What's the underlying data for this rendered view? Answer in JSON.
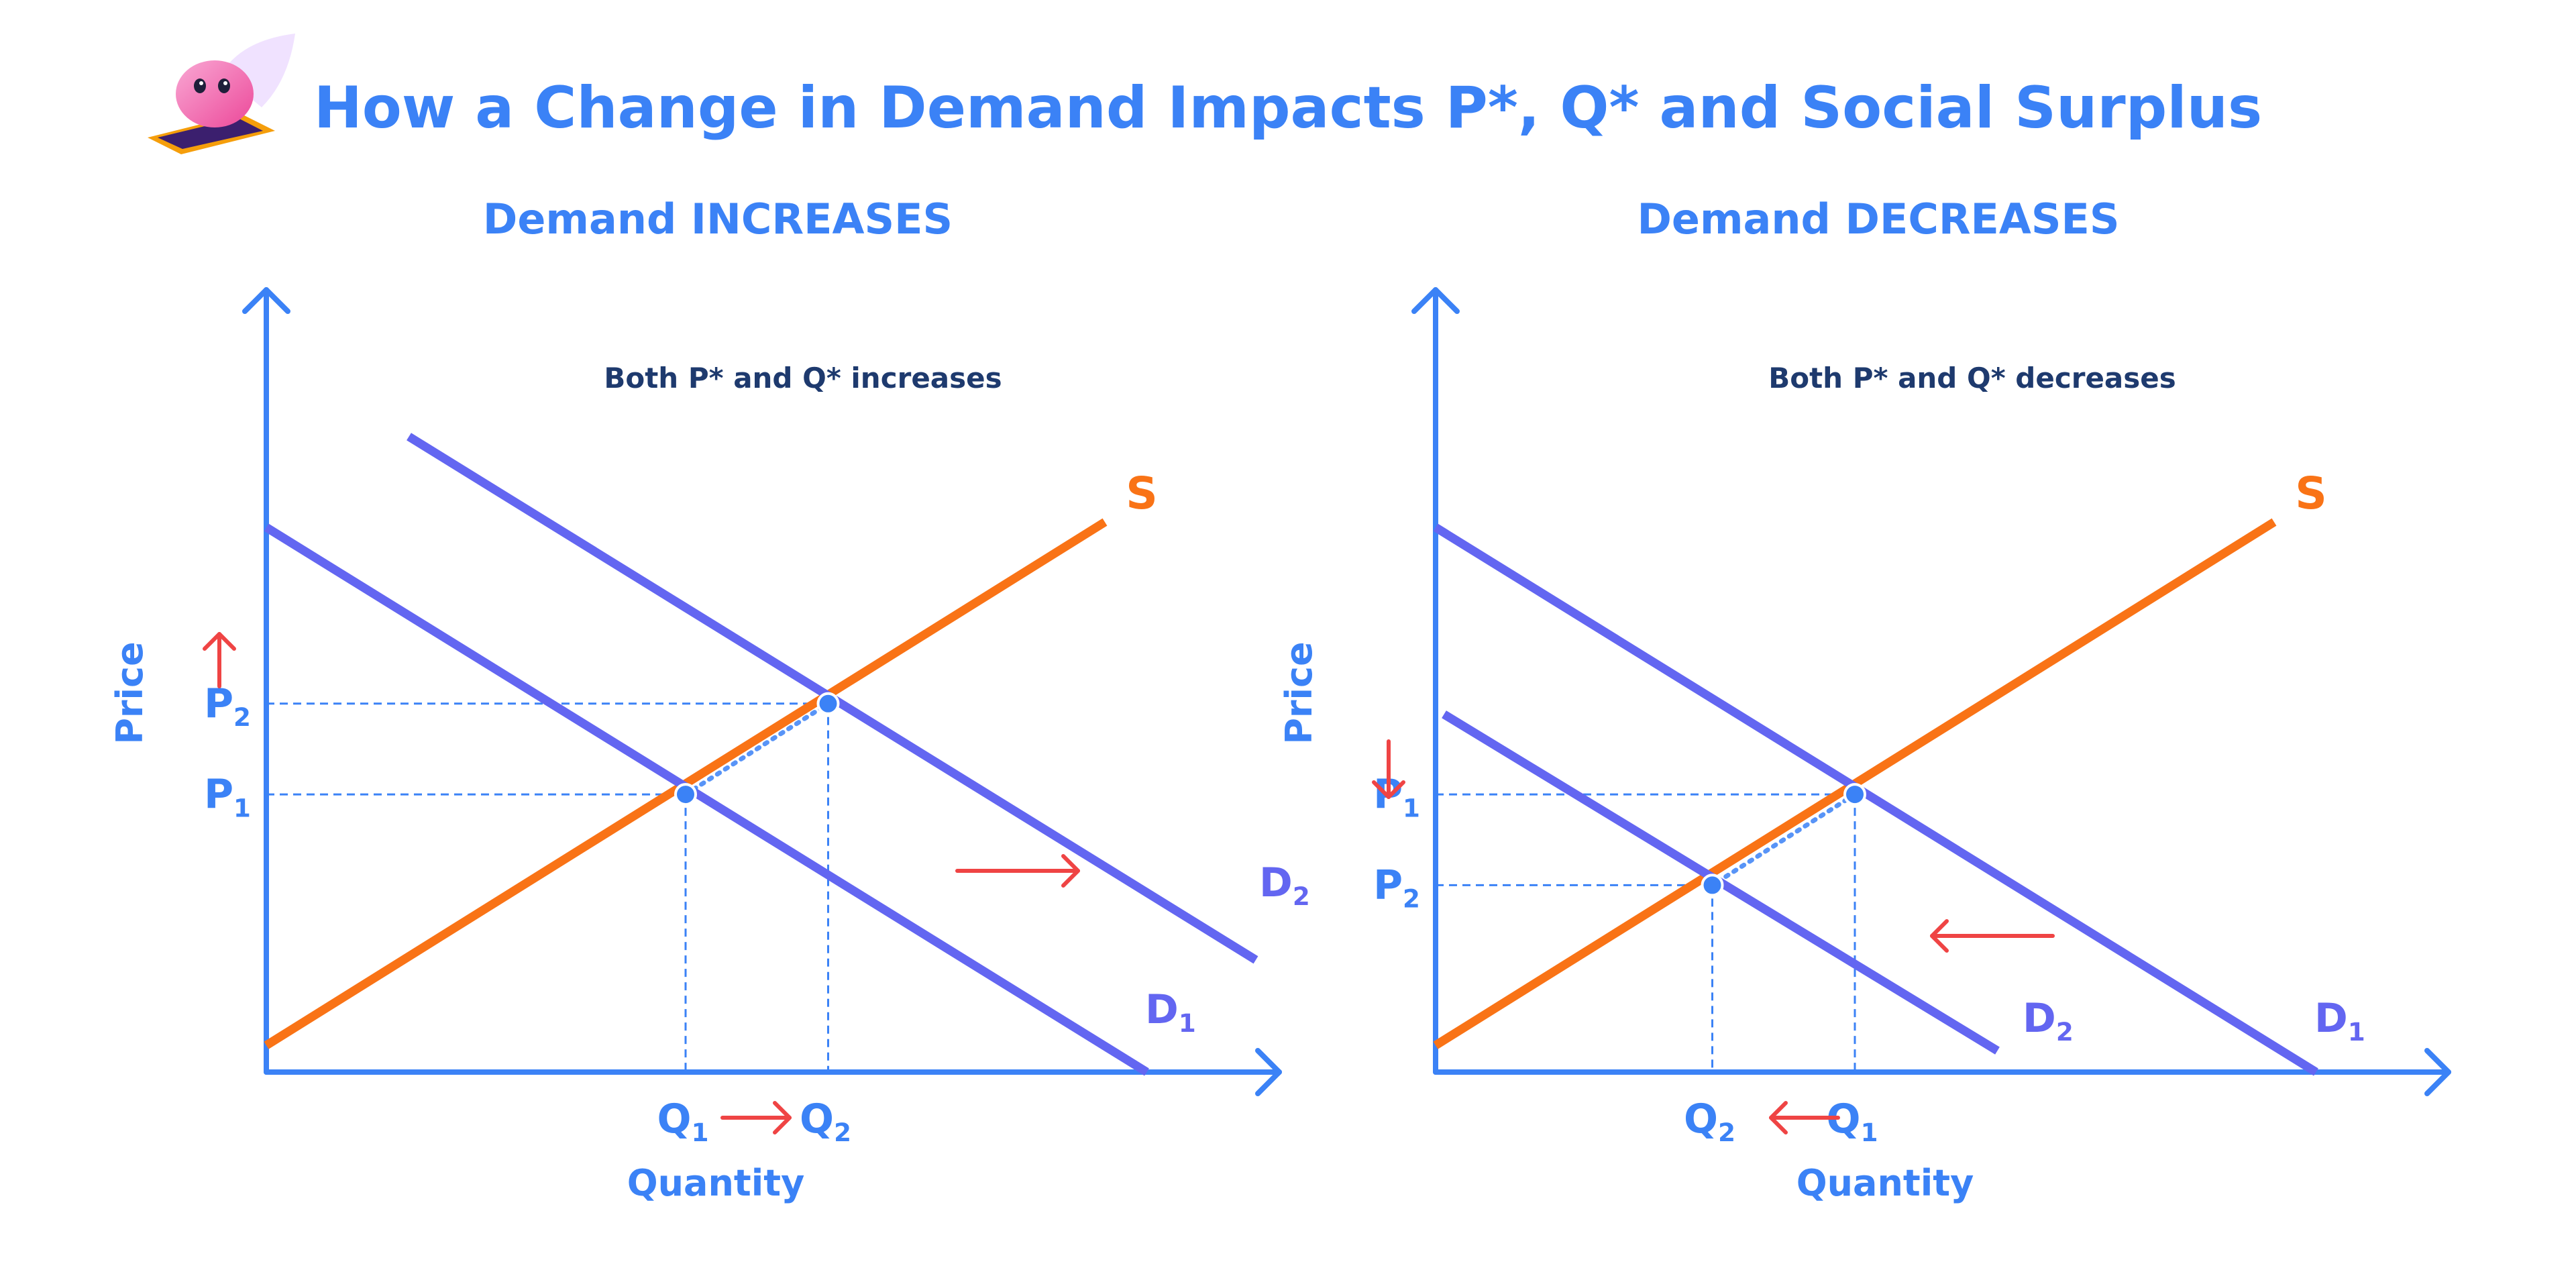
{
  "title": "How a Change in Demand Impacts P*, Q* and Social Surplus",
  "colors": {
    "axis": "#3b82f6",
    "demand": "#6366f1",
    "supply": "#f97316",
    "arrow": "#ef4444",
    "guide": "#3b82f6",
    "annotation": "#1e3a6e"
  },
  "mascot_icon": "magic-carpet-mascot-icon",
  "chart_data": [
    {
      "type": "line",
      "title": "Demand INCREASES",
      "xlabel": "Quantity",
      "ylabel": "Price",
      "annotation": "Both P* and Q* increases",
      "shift_direction": "right",
      "supply_label": "S",
      "series": [
        {
          "name": "S",
          "points": [
            [
              0,
              0.5
            ],
            [
              10,
              10.3
            ]
          ]
        },
        {
          "name": "D1",
          "points": [
            [
              0,
              10.2
            ],
            [
              10.5,
              0
            ]
          ]
        },
        {
          "name": "D2",
          "points": [
            [
              1.7,
              11.9
            ],
            [
              11.8,
              2.1
            ]
          ]
        }
      ],
      "equilibria": [
        {
          "price_label": "P",
          "price_sub": "1",
          "qty_label": "Q",
          "qty_sub": "1",
          "x": 5.0,
          "y": 5.2
        },
        {
          "price_label": "P",
          "price_sub": "2",
          "qty_label": "Q",
          "qty_sub": "2",
          "x": 6.7,
          "y": 6.9
        }
      ],
      "demand_labels": [
        {
          "text": "D",
          "sub": "1"
        },
        {
          "text": "D",
          "sub": "2"
        }
      ]
    },
    {
      "type": "line",
      "title": "Demand DECREASES",
      "xlabel": "Quantity",
      "ylabel": "Price",
      "annotation": "Both P* and Q* decreases",
      "shift_direction": "left",
      "supply_label": "S",
      "series": [
        {
          "name": "S",
          "points": [
            [
              0,
              0.5
            ],
            [
              10,
              10.3
            ]
          ]
        },
        {
          "name": "D1",
          "points": [
            [
              0,
              10.2
            ],
            [
              10.5,
              0
            ]
          ]
        },
        {
          "name": "D2",
          "points": [
            [
              0.1,
              6.7
            ],
            [
              6.7,
              0.4
            ]
          ]
        }
      ],
      "equilibria": [
        {
          "price_label": "P",
          "price_sub": "1",
          "qty_label": "Q",
          "qty_sub": "1",
          "x": 5.0,
          "y": 5.2
        },
        {
          "price_label": "P",
          "price_sub": "2",
          "qty_label": "Q",
          "qty_sub": "2",
          "x": 3.3,
          "y": 3.5
        }
      ],
      "demand_labels": [
        {
          "text": "D",
          "sub": "1"
        },
        {
          "text": "D",
          "sub": "2"
        }
      ]
    }
  ]
}
